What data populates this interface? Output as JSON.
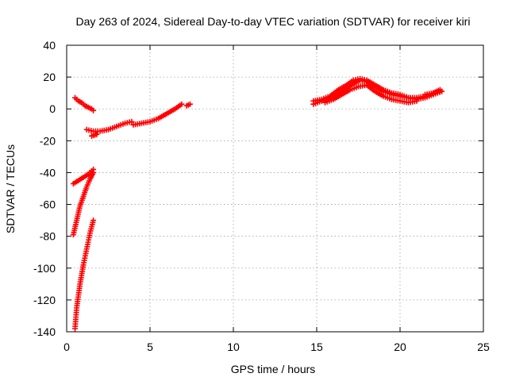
{
  "chart_data": {
    "type": "scatter",
    "title": "Day 263 of 2024, Sidereal Day-to-day VTEC variation (SDTVAR) for receiver kiri",
    "xlabel": "GPS time / hours",
    "ylabel": "SDTVAR / TECUs",
    "xlim": [
      0,
      25
    ],
    "ylim": [
      -140,
      40
    ],
    "xticks": [
      0,
      5,
      10,
      15,
      20,
      25
    ],
    "yticks": [
      -140,
      -120,
      -100,
      -80,
      -60,
      -40,
      -20,
      0,
      20,
      40
    ],
    "xtick_labels": [
      "0",
      "5",
      "10",
      "15",
      "20",
      "25"
    ],
    "ytick_labels": [
      "-140",
      "-120",
      "-100",
      "-80",
      "-60",
      "-40",
      "-20",
      "0",
      "20",
      "40"
    ],
    "grid": true,
    "marker": "plus",
    "color": "#ff0000",
    "segments": [
      {
        "points": [
          [
            0.5,
            7
          ],
          [
            0.7,
            5
          ],
          [
            0.9,
            4
          ],
          [
            1.1,
            2
          ],
          [
            1.3,
            1
          ],
          [
            1.5,
            0
          ],
          [
            1.6,
            -1
          ]
        ]
      },
      {
        "points": [
          [
            1.2,
            -13
          ],
          [
            1.6,
            -14
          ],
          [
            2.0,
            -14
          ],
          [
            2.5,
            -13
          ],
          [
            3.0,
            -11
          ],
          [
            3.5,
            -9
          ],
          [
            3.9,
            -8
          ]
        ]
      },
      {
        "points": [
          [
            1.5,
            -17
          ],
          [
            1.8,
            -16
          ]
        ]
      },
      {
        "points": [
          [
            4.0,
            -10
          ],
          [
            4.5,
            -9
          ],
          [
            5.0,
            -8
          ],
          [
            5.5,
            -6
          ],
          [
            6.0,
            -3
          ],
          [
            6.5,
            0
          ],
          [
            6.9,
            3
          ]
        ]
      },
      {
        "points": [
          [
            7.2,
            2
          ],
          [
            7.4,
            3
          ]
        ]
      },
      {
        "points": [
          [
            0.4,
            -47
          ],
          [
            0.7,
            -45
          ],
          [
            1.0,
            -43
          ],
          [
            1.3,
            -41
          ],
          [
            1.6,
            -38
          ]
        ]
      },
      {
        "points": [
          [
            0.4,
            -79
          ],
          [
            0.6,
            -70
          ],
          [
            0.8,
            -61
          ],
          [
            1.0,
            -55
          ],
          [
            1.2,
            -49
          ],
          [
            1.4,
            -44
          ],
          [
            1.6,
            -40
          ]
        ]
      },
      {
        "points": [
          [
            0.5,
            -138
          ],
          [
            0.6,
            -125
          ],
          [
            0.8,
            -110
          ],
          [
            1.0,
            -98
          ],
          [
            1.2,
            -88
          ],
          [
            1.4,
            -78
          ],
          [
            1.6,
            -70
          ]
        ]
      },
      {
        "points": [
          [
            14.8,
            3
          ],
          [
            15.3,
            5
          ],
          [
            15.8,
            7
          ],
          [
            16.3,
            10
          ],
          [
            16.8,
            13
          ],
          [
            17.2,
            16
          ],
          [
            17.6,
            18
          ],
          [
            18.0,
            17
          ],
          [
            18.5,
            14
          ],
          [
            19.0,
            11
          ],
          [
            19.5,
            9
          ],
          [
            20.0,
            8
          ],
          [
            20.5,
            7
          ],
          [
            21.0,
            7
          ],
          [
            21.5,
            8
          ],
          [
            22.0,
            10
          ],
          [
            22.4,
            12
          ]
        ]
      },
      {
        "points": [
          [
            14.8,
            5
          ],
          [
            15.3,
            6
          ],
          [
            15.8,
            8
          ],
          [
            16.3,
            12
          ],
          [
            16.8,
            15
          ],
          [
            17.2,
            18
          ],
          [
            17.6,
            19
          ],
          [
            18.0,
            18
          ],
          [
            18.5,
            15
          ],
          [
            19.0,
            12
          ],
          [
            19.5,
            10
          ],
          [
            20.0,
            9
          ],
          [
            20.5,
            7
          ],
          [
            21.0,
            6
          ],
          [
            21.5,
            7
          ],
          [
            22.0,
            9
          ],
          [
            22.5,
            11
          ]
        ]
      },
      {
        "points": [
          [
            15.5,
            4
          ],
          [
            16.0,
            6
          ],
          [
            16.5,
            9
          ],
          [
            17.0,
            12
          ],
          [
            17.5,
            14
          ],
          [
            18.0,
            15
          ],
          [
            18.5,
            11
          ],
          [
            19.0,
            8
          ],
          [
            19.5,
            6
          ],
          [
            20.0,
            5
          ],
          [
            20.5,
            4
          ],
          [
            21.0,
            5
          ]
        ]
      },
      {
        "points": [
          [
            21.5,
            9
          ],
          [
            22.0,
            10
          ],
          [
            22.5,
            11
          ]
        ]
      }
    ]
  }
}
